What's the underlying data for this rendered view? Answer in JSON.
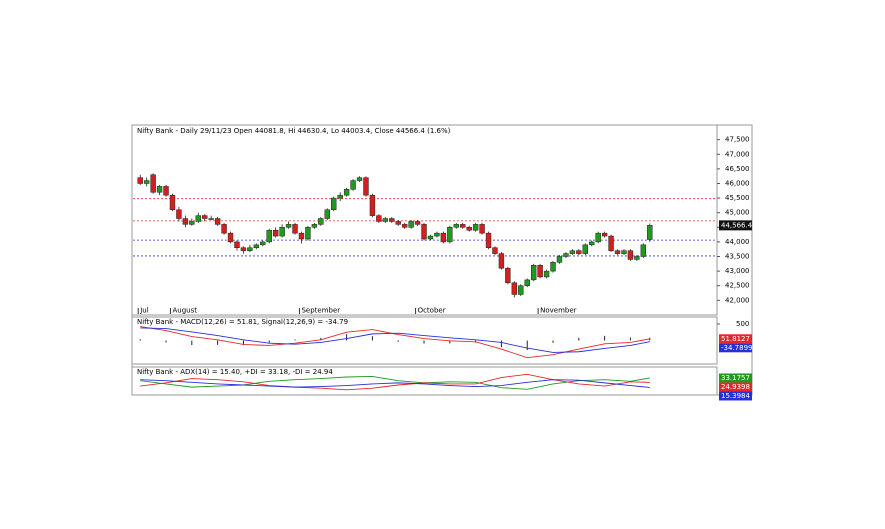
{
  "chart_data": [
    {
      "type": "candlestick",
      "title": "Nifty Bank - Daily 29/11/23 Open 44081.8, Hi 44630.4, Lo 44003.4, Close 44566.4 (1.6%)",
      "categories": [
        "Jul",
        null,
        null,
        null,
        null,
        "August",
        null,
        null,
        null,
        null,
        null,
        null,
        null,
        null,
        null,
        null,
        null,
        null,
        null,
        null,
        null,
        null,
        null,
        null,
        null,
        "September",
        null,
        null,
        null,
        null,
        null,
        null,
        null,
        null,
        null,
        null,
        null,
        null,
        null,
        null,
        null,
        null,
        null,
        "October",
        null,
        null,
        null,
        null,
        null,
        null,
        null,
        null,
        null,
        null,
        null,
        null,
        null,
        null,
        null,
        null,
        null,
        null,
        "November",
        null,
        null,
        null,
        null,
        null,
        null,
        null,
        null,
        null,
        null,
        null,
        null,
        null,
        null,
        null,
        null,
        null
      ],
      "open": [
        46200,
        46000,
        46300,
        45700,
        45900,
        45600,
        45100,
        44800,
        44600,
        44700,
        44900,
        44800,
        44800,
        44600,
        44300,
        44000,
        43800,
        43700,
        43800,
        43900,
        44000,
        44400,
        44200,
        44500,
        44600,
        44300,
        44100,
        44500,
        44600,
        44800,
        45100,
        45500,
        45600,
        45800,
        46100,
        46200,
        45600,
        44900,
        44700,
        44800,
        44700,
        44600,
        44500,
        44700,
        44600,
        44100,
        44200,
        44300,
        44000,
        44500,
        44600,
        44500,
        44400,
        44600,
        44300,
        43800,
        43600,
        43100,
        42600,
        42200,
        42500,
        42700,
        43200,
        42800,
        43000,
        43300,
        43500,
        43600,
        43700,
        43600,
        43900,
        44000,
        44300,
        44200,
        43700,
        43600,
        43700,
        43400,
        43500,
        44081.8
      ],
      "high": [
        46300,
        46200,
        46350,
        45950,
        45950,
        45650,
        45200,
        44900,
        44800,
        45000,
        44950,
        44900,
        44850,
        44650,
        44350,
        44050,
        43850,
        43900,
        43950,
        44050,
        44450,
        44500,
        44600,
        44700,
        44650,
        44350,
        44550,
        44650,
        44850,
        45150,
        45550,
        45700,
        45850,
        46150,
        46250,
        46250,
        45650,
        44950,
        44850,
        44850,
        44750,
        44650,
        44750,
        44750,
        44650,
        44250,
        44350,
        44350,
        44550,
        44650,
        44650,
        44550,
        44650,
        44650,
        44350,
        43850,
        43650,
        43150,
        42650,
        42550,
        42750,
        43250,
        43250,
        43050,
        43350,
        43550,
        43650,
        43750,
        43750,
        43950,
        44050,
        44350,
        44350,
        44250,
        43750,
        43750,
        43750,
        43550,
        43950,
        44630.4
      ],
      "low": [
        45950,
        45900,
        45650,
        45600,
        45550,
        45050,
        44700,
        44500,
        44550,
        44650,
        44700,
        44750,
        44550,
        44250,
        43950,
        43700,
        43600,
        43650,
        43750,
        43850,
        43950,
        44150,
        44150,
        44450,
        44250,
        43950,
        44050,
        44450,
        44550,
        44750,
        45050,
        45400,
        45550,
        45750,
        46050,
        45550,
        44850,
        44650,
        44650,
        44650,
        44550,
        44450,
        44450,
        44550,
        44050,
        44050,
        44150,
        43950,
        43950,
        44450,
        44450,
        44350,
        44350,
        44250,
        43750,
        43550,
        43050,
        42550,
        42100,
        42150,
        42450,
        42650,
        42750,
        42750,
        42950,
        43250,
        43450,
        43550,
        43550,
        43550,
        43850,
        43950,
        44150,
        43650,
        43550,
        43550,
        43350,
        43350,
        43450,
        44003.4
      ],
      "close": [
        46000,
        46100,
        45700,
        45900,
        45600,
        45100,
        44800,
        44600,
        44700,
        44900,
        44800,
        44800,
        44600,
        44300,
        44000,
        43800,
        43700,
        43800,
        43900,
        44000,
        44400,
        44200,
        44500,
        44600,
        44300,
        44100,
        44500,
        44600,
        44800,
        45100,
        45500,
        45600,
        45800,
        46100,
        46200,
        45600,
        44900,
        44700,
        44800,
        44700,
        44600,
        44500,
        44700,
        44600,
        44100,
        44200,
        44300,
        44000,
        44500,
        44600,
        44500,
        44400,
        44600,
        44300,
        43800,
        43600,
        43100,
        42600,
        42200,
        42500,
        42700,
        43200,
        42800,
        43000,
        43300,
        43500,
        43600,
        43700,
        43600,
        43900,
        44000,
        44300,
        44200,
        43700,
        43600,
        43700,
        43400,
        43500,
        43900,
        44566.4
      ],
      "up_color": "#1f9a1f",
      "down_color": "#d41f1f",
      "last_label": "44,566.4",
      "reference_lines": [
        {
          "value": 45480,
          "color": "#e0302a"
        },
        {
          "value": 44720,
          "color": "#e0302a"
        },
        {
          "value": 44060,
          "color": "#2f35d8"
        },
        {
          "value": 43520,
          "color": "#2f35d8"
        }
      ],
      "ylim": [
        41600,
        47900
      ],
      "yticks": [
        {
          "value": 42000,
          "label": "42,000"
        },
        {
          "value": 42500,
          "label": "42,500"
        },
        {
          "value": 43000,
          "label": "43,000"
        },
        {
          "value": 43500,
          "label": "43,500"
        },
        {
          "value": 44000,
          "label": "44,000"
        },
        {
          "value": 44500,
          "label": "44,500"
        },
        {
          "value": 45000,
          "label": "45,000"
        },
        {
          "value": 45500,
          "label": "45,500"
        },
        {
          "value": 46000,
          "label": "46,000"
        },
        {
          "value": 46500,
          "label": "46,500"
        },
        {
          "value": 47000,
          "label": "47,000"
        },
        {
          "value": 47500,
          "label": "47,500"
        }
      ]
    },
    {
      "type": "line",
      "title": "Nifty Bank - MACD(12,26) = 51.81, Signal(12,26,9) = -34.79",
      "x": [
        0,
        4,
        8,
        12,
        16,
        20,
        24,
        28,
        32,
        36,
        40,
        44,
        48,
        52,
        56,
        60,
        64,
        68,
        72,
        76,
        79
      ],
      "histogram": true,
      "series": [
        {
          "color": "#e8262a",
          "end_label": "51.8127",
          "values": [
            420,
            300,
            120,
            20,
            -120,
            -150,
            -80,
            20,
            250,
            330,
            180,
            60,
            -10,
            -40,
            -260,
            -520,
            -430,
            -260,
            -100,
            -60,
            51.8127
          ]
        },
        {
          "color": "#2430d8",
          "end_label": "-34.7899",
          "values": [
            380,
            360,
            260,
            150,
            20,
            -80,
            -110,
            -60,
            60,
            200,
            220,
            150,
            80,
            20,
            -60,
            -230,
            -360,
            -340,
            -240,
            -150,
            -34.7899
          ]
        }
      ],
      "xlim": [
        -0.5,
        79.5
      ],
      "ylim": [
        -650,
        650
      ],
      "yticks": [
        500
      ]
    },
    {
      "type": "line",
      "title": "Nifty Bank - ADX(14) = 15.40, +DI = 33.18, -DI = 24.94",
      "x": [
        0,
        4,
        8,
        12,
        16,
        20,
        24,
        28,
        32,
        36,
        40,
        44,
        48,
        52,
        56,
        60,
        64,
        68,
        72,
        76,
        79
      ],
      "histogram": false,
      "series": [
        {
          "color": "#1f9a1f",
          "end_label": "33.1757",
          "values": [
            28,
            22,
            16,
            18,
            20,
            27,
            30,
            32,
            35,
            36,
            28,
            24,
            26,
            25,
            15,
            12,
            22,
            28,
            30,
            27,
            33.1757
          ]
        },
        {
          "color": "#e8262a",
          "end_label": "24.9398",
          "values": [
            18,
            24,
            32,
            30,
            26,
            19,
            16,
            14,
            11,
            14,
            20,
            24,
            22,
            22,
            34,
            40,
            30,
            22,
            18,
            26,
            24.9398
          ]
        },
        {
          "color": "#2430d8",
          "end_label": "15.3984",
          "values": [
            30,
            28,
            25,
            22,
            20,
            18,
            16,
            17,
            19,
            22,
            24,
            22,
            19,
            17,
            19,
            25,
            30,
            29,
            24,
            19,
            15.3984
          ]
        }
      ],
      "xlim": [
        -0.5,
        79.5
      ],
      "ylim": [
        5,
        50
      ]
    }
  ]
}
